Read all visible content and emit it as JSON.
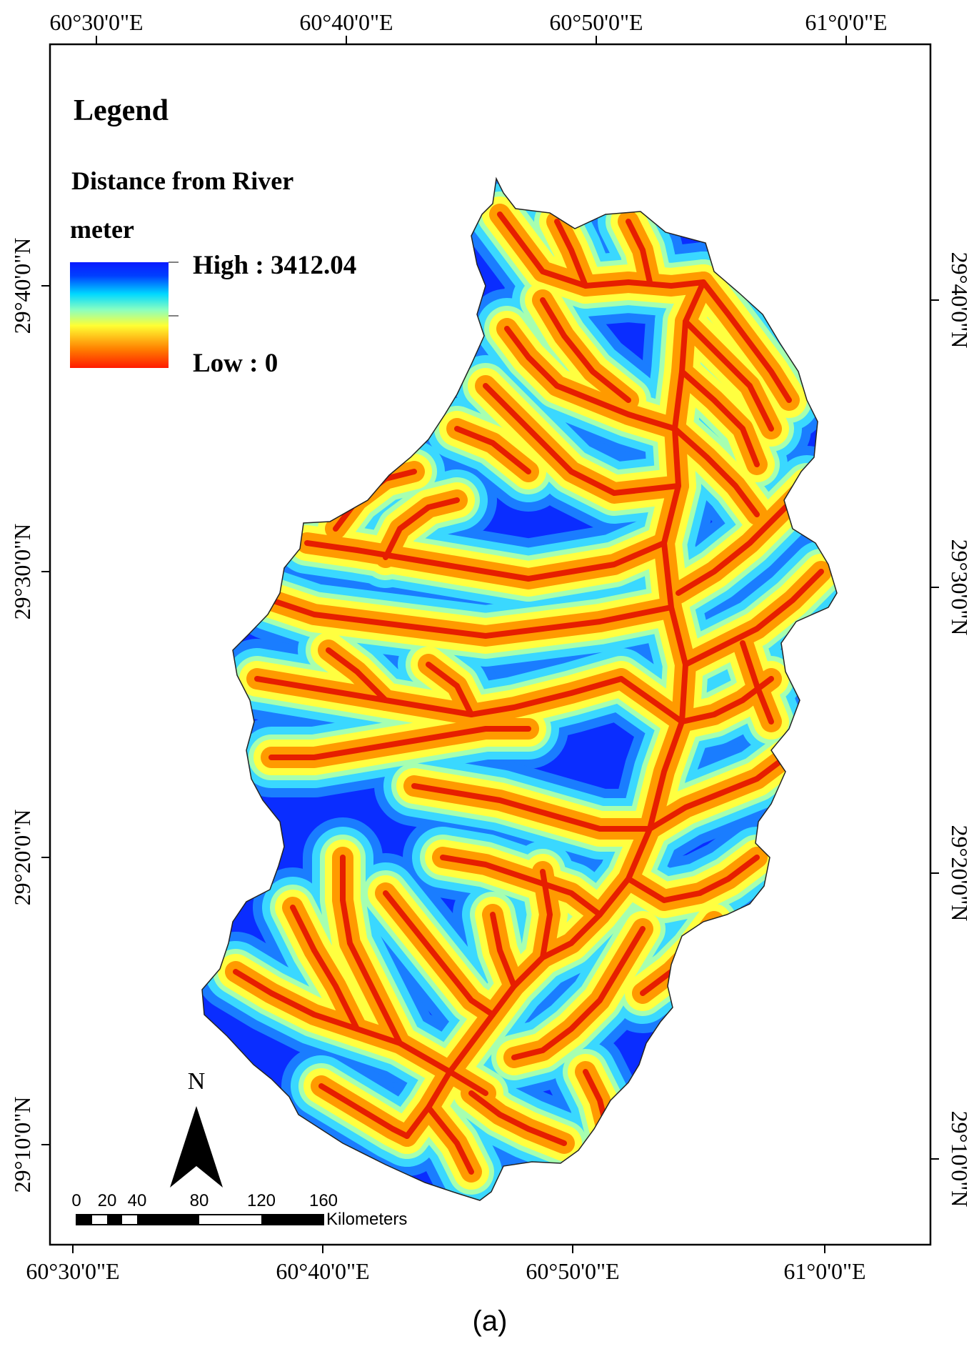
{
  "top_axis_labels": [
    "60°30'0\"E",
    "60°40'0\"E",
    "60°50'0\"E",
    "61°0'0\"E"
  ],
  "bottom_axis_labels": [
    "60°30'0\"E",
    "60°40'0\"E",
    "60°50'0\"E",
    "61°0'0\"E"
  ],
  "left_axis_labels": [
    "29°40'0\"N",
    "29°30'0\"N",
    "29°20'0\"N",
    "29°10'0\"N"
  ],
  "right_axis_labels": [
    "29°40'0\"N",
    "29°30'0\"N",
    "29°20'0\"N",
    "29°10'0\"N"
  ],
  "legend": {
    "title": "Legend",
    "layer_name": "Distance from River",
    "unit": "meter",
    "high_label": "High : 3412.04",
    "low_label": "Low : 0",
    "high_value": 3412.04,
    "low_value": 0,
    "ramp_colors": [
      "#ff1a00",
      "#ff8000",
      "#ffff33",
      "#8affc0",
      "#00d8ff",
      "#0040ff",
      "#0a1aff"
    ]
  },
  "north_arrow": {
    "label": "N"
  },
  "scale_bar": {
    "ticks": [
      "0",
      "20",
      "40",
      "80",
      "120",
      "160"
    ],
    "unit": "Kilometers"
  },
  "caption": "(a)",
  "colors": {
    "river": "#e61e00",
    "near": "#ff9a00",
    "mid": "#ffff40",
    "far": "#3ad8ff",
    "farthest": "#0a2dff"
  }
}
